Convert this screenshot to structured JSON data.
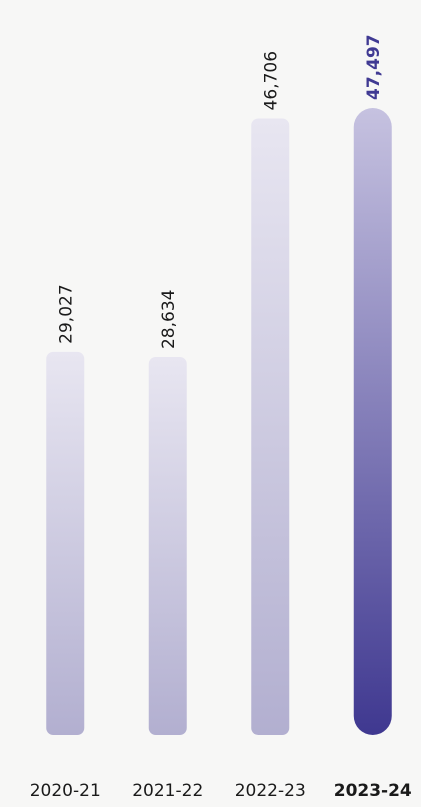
{
  "chart_data": {
    "type": "bar",
    "categories": [
      "2020-21",
      "2021-22",
      "2022-23",
      "2023-24"
    ],
    "values": [
      29027,
      28634,
      46706,
      47497
    ],
    "value_labels": [
      "29,027",
      "28,634",
      "46,706",
      "47,497"
    ],
    "colors": [
      [
        "#e8e6f1",
        "#b2afd0"
      ],
      [
        "#e8e6f1",
        "#b2afd0"
      ],
      [
        "#e8e6f1",
        "#b2afd0"
      ],
      [
        "#c6c2e0",
        "#3f3890"
      ]
    ],
    "emphasis": [
      false,
      false,
      false,
      true
    ],
    "emphasis_color": "#403a93"
  }
}
